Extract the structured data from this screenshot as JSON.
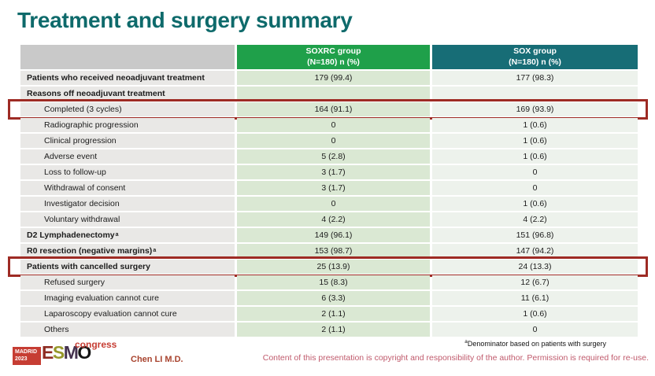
{
  "slide": {
    "title": "Treatment and surgery summary"
  },
  "table": {
    "columns": [
      {
        "name": "",
        "sub": ""
      },
      {
        "name": "SOXRC group",
        "sub": "(N=180)  n (%)"
      },
      {
        "name": "SOX group",
        "sub": "(N=180)  n (%)"
      }
    ],
    "rows": [
      {
        "label": "Patients who received neoadjuvant treatment",
        "sup": "",
        "soxrc": "179 (99.4)",
        "sox": "177 (98.3)",
        "bold": true,
        "indent": false,
        "highlight": false
      },
      {
        "label": "Reasons off neoadjuvant treatment",
        "sup": "",
        "soxrc": "",
        "sox": "",
        "bold": true,
        "indent": false,
        "highlight": false
      },
      {
        "label": "Completed (3 cycles)",
        "sup": "",
        "soxrc": "164 (91.1)",
        "sox": "169 (93.9)",
        "bold": false,
        "indent": true,
        "highlight": true
      },
      {
        "label": "Radiographic progression",
        "sup": "",
        "soxrc": "0",
        "sox": "1 (0.6)",
        "bold": false,
        "indent": true,
        "highlight": false
      },
      {
        "label": "Clinical progression",
        "sup": "",
        "soxrc": "0",
        "sox": "1 (0.6)",
        "bold": false,
        "indent": true,
        "highlight": false
      },
      {
        "label": "Adverse event",
        "sup": "",
        "soxrc": "5 (2.8)",
        "sox": "1 (0.6)",
        "bold": false,
        "indent": true,
        "highlight": false
      },
      {
        "label": "Loss to follow-up",
        "sup": "",
        "soxrc": "3 (1.7)",
        "sox": "0",
        "bold": false,
        "indent": true,
        "highlight": false
      },
      {
        "label": "Withdrawal of consent",
        "sup": "",
        "soxrc": "3 (1.7)",
        "sox": "0",
        "bold": false,
        "indent": true,
        "highlight": false
      },
      {
        "label": "Investigator decision",
        "sup": "",
        "soxrc": "0",
        "sox": "1 (0.6)",
        "bold": false,
        "indent": true,
        "highlight": false
      },
      {
        "label": "Voluntary withdrawal",
        "sup": "",
        "soxrc": "4 (2.2)",
        "sox": "4 (2.2)",
        "bold": false,
        "indent": true,
        "highlight": false
      },
      {
        "label": "D2 Lymphadenectomy",
        "sup": "a",
        "soxrc": "149 (96.1)",
        "sox": "151 (96.8)",
        "bold": true,
        "indent": false,
        "highlight": false
      },
      {
        "label": "R0 resection (negative margins)",
        "sup": "a",
        "soxrc": "153 (98.7)",
        "sox": "147 (94.2)",
        "bold": true,
        "indent": false,
        "highlight": false
      },
      {
        "label": "Patients with cancelled surgery",
        "sup": "",
        "soxrc": "25 (13.9)",
        "sox": "24 (13.3)",
        "bold": true,
        "indent": false,
        "highlight": true
      },
      {
        "label": "Refused surgery",
        "sup": "",
        "soxrc": "15 (8.3)",
        "sox": "12 (6.7)",
        "bold": false,
        "indent": true,
        "highlight": false
      },
      {
        "label": "Imaging evaluation cannot cure",
        "sup": "",
        "soxrc": "6 (3.3)",
        "sox": "11 (6.1)",
        "bold": false,
        "indent": true,
        "highlight": false
      },
      {
        "label": "Laparoscopy evaluation cannot cure",
        "sup": "",
        "soxrc": "2 (1.1)",
        "sox": "1 (0.6)",
        "bold": false,
        "indent": true,
        "highlight": false
      },
      {
        "label": "Others",
        "sup": "",
        "soxrc": "2 (1.1)",
        "sox": "0",
        "bold": false,
        "indent": true,
        "highlight": false
      }
    ]
  },
  "footer": {
    "logo": {
      "city": "MADRID",
      "year": "2023",
      "letters": [
        {
          "ch": "E",
          "color": "#8e2b21"
        },
        {
          "ch": "S",
          "color": "#97982b"
        },
        {
          "ch": "M",
          "color": "#45324f"
        },
        {
          "ch": "O",
          "color": "#141414"
        }
      ],
      "suffix": "congress"
    },
    "presenter": "Chen LI M.D.",
    "footnote_sup": "a",
    "footnote_text": "Denominator based on patients with surgery",
    "copyright": "Content of this presentation is copyright and responsibility of the author.  Permission is required for re-use."
  },
  "colors": {
    "title": "#0e6a6b",
    "header-gray": "#c9c9c9",
    "green": "#1fa04a",
    "teal": "#176d76",
    "cell-gray": "#e9e8e6",
    "cell-green": "#dae8d3",
    "cell-sox": "#edf2ec",
    "red": "#9e2b24",
    "rose": "#c05a6c",
    "presenter": "#a8432e",
    "logo-red": "#c63d33"
  }
}
